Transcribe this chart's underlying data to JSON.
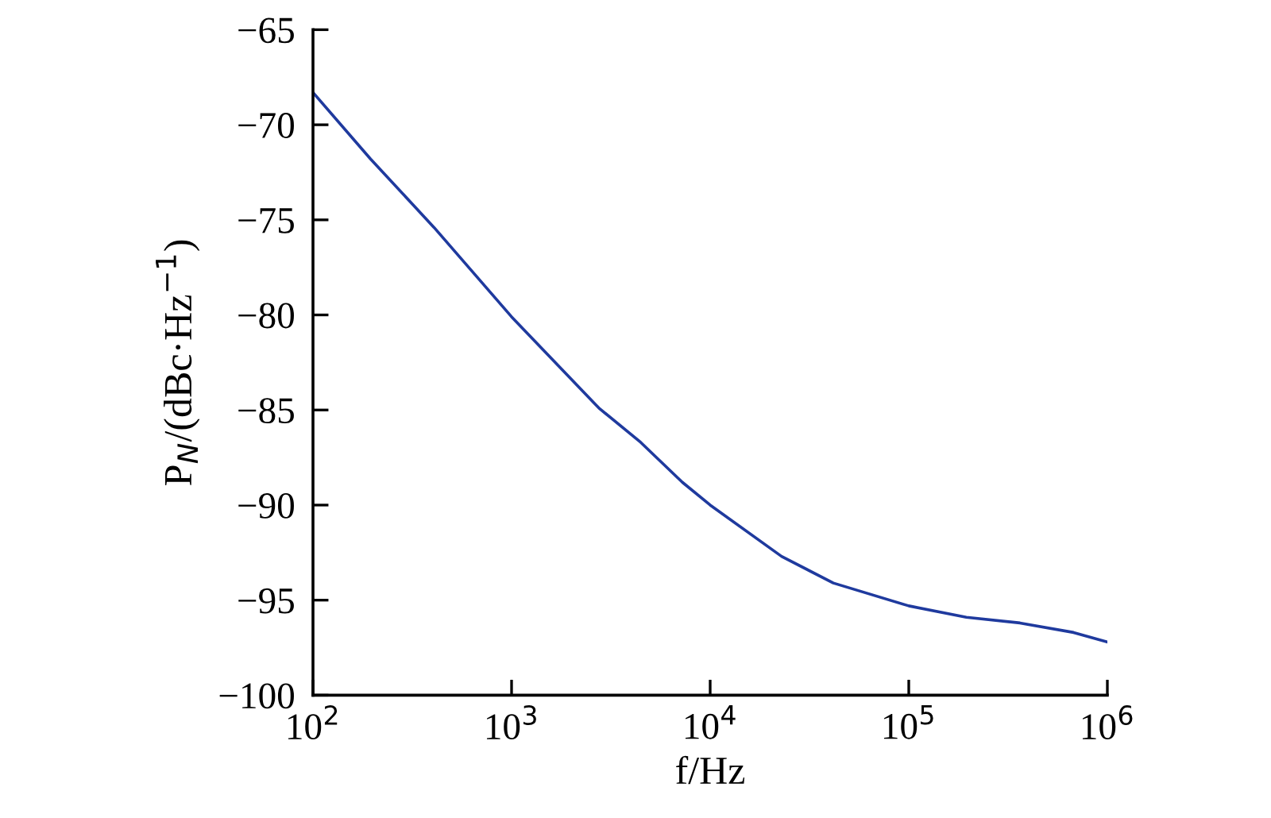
{
  "chart_data": {
    "type": "line",
    "xlabel": "f/Hz",
    "ylabel": "P$_{N}$/(dBc·Hz$^{−1}$)",
    "log": "x",
    "x": [
      100,
      195,
      407,
      1000,
      2754,
      4467,
      7244,
      10000,
      22900,
      41700,
      100000,
      195000,
      363000,
      676000,
      1000000
    ],
    "series": [
      {
        "color": "#1f3a9e",
        "values": [
          -68.3,
          -71.8,
          -75.4,
          -80.1,
          -84.9,
          -86.7,
          -88.8,
          -90.0,
          -92.7,
          -94.1,
          -95.3,
          -95.9,
          -96.2,
          -96.7,
          -97.2
        ]
      }
    ],
    "xlim": [
      100,
      1000000
    ],
    "xticks": [
      {
        "value": 100,
        "label": "10$^{2}$"
      },
      {
        "value": 1000,
        "label": "10$^{3}$"
      },
      {
        "value": 10000,
        "label": "10$^{4}$"
      },
      {
        "value": 100000,
        "label": "10$^{5}$"
      },
      {
        "value": 1000000,
        "label": "10$^{6}$"
      }
    ],
    "ylim": [
      -100,
      -65
    ],
    "yticks": [
      -100,
      -95,
      -90,
      -85,
      -80,
      -75,
      -70,
      -65
    ],
    "grid": false,
    "legend": false,
    "marker": "none",
    "line_style": "solid"
  }
}
